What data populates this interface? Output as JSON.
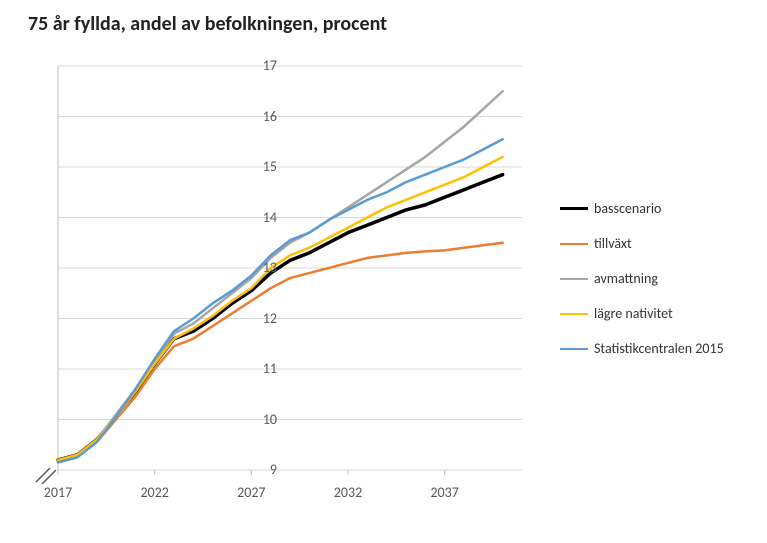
{
  "title": "75 år fyllda, andel av befolkningen, procent",
  "title_fontsize": 20,
  "background_color": "#ffffff",
  "plot": {
    "type": "line",
    "xlim": [
      2017,
      2041
    ],
    "ylim": [
      9,
      17
    ],
    "xticks": [
      2017,
      2022,
      2027,
      2032,
      2037
    ],
    "yticks": [
      9,
      10,
      11,
      12,
      13,
      14,
      15,
      16,
      17
    ],
    "grid_color": "#d9d9d9",
    "axis_color": "#bfbfbf",
    "tick_font_size": 14,
    "tick_font_color": "#595959",
    "years": [
      2017,
      2018,
      2019,
      2020,
      2021,
      2022,
      2023,
      2024,
      2025,
      2026,
      2027,
      2028,
      2029,
      2030,
      2031,
      2032,
      2033,
      2034,
      2035,
      2036,
      2037,
      2038,
      2039,
      2040
    ],
    "series": [
      {
        "key": "basscenario",
        "label": "basscenario",
        "color": "#000000",
        "width": 3.5,
        "values": [
          9.2,
          9.3,
          9.6,
          10.05,
          10.55,
          11.1,
          11.6,
          11.75,
          12.0,
          12.3,
          12.55,
          12.9,
          13.15,
          13.3,
          13.5,
          13.7,
          13.85,
          14.0,
          14.15,
          14.25,
          14.4,
          14.55,
          14.7,
          14.85
        ]
      },
      {
        "key": "tillvaxt",
        "label": "tillväxt",
        "color": "#ed7d31",
        "width": 2.5,
        "values": [
          9.2,
          9.3,
          9.55,
          10.0,
          10.45,
          11.0,
          11.45,
          11.6,
          11.85,
          12.1,
          12.35,
          12.6,
          12.8,
          12.9,
          13.0,
          13.1,
          13.2,
          13.25,
          13.3,
          13.33,
          13.35,
          13.4,
          13.45,
          13.5
        ]
      },
      {
        "key": "avmattning",
        "label": "avmattning",
        "color": "#a6a6a6",
        "width": 2.5,
        "values": [
          9.2,
          9.3,
          9.6,
          10.1,
          10.6,
          11.15,
          11.7,
          11.9,
          12.2,
          12.5,
          12.8,
          13.2,
          13.5,
          13.7,
          13.95,
          14.2,
          14.45,
          14.7,
          14.95,
          15.2,
          15.5,
          15.8,
          16.15,
          16.5
        ]
      },
      {
        "key": "lagre_nativitet",
        "label": "lägre nativitet",
        "color": "#ffc000",
        "width": 2.5,
        "values": [
          9.2,
          9.3,
          9.6,
          10.05,
          10.55,
          11.1,
          11.6,
          11.8,
          12.05,
          12.35,
          12.6,
          13.0,
          13.25,
          13.4,
          13.6,
          13.8,
          14.0,
          14.2,
          14.35,
          14.5,
          14.65,
          14.8,
          15.0,
          15.2
        ]
      },
      {
        "key": "statistikcentralen",
        "label": "Statistikcentralen 2015",
        "color": "#5b9bd5",
        "width": 2.5,
        "values": [
          9.15,
          9.25,
          9.55,
          10.05,
          10.6,
          11.2,
          11.75,
          12.0,
          12.3,
          12.55,
          12.85,
          13.25,
          13.55,
          13.7,
          13.95,
          14.15,
          14.35,
          14.5,
          14.7,
          14.85,
          15.0,
          15.15,
          15.35,
          15.55
        ]
      }
    ]
  },
  "legend": {
    "font_size": 14
  }
}
